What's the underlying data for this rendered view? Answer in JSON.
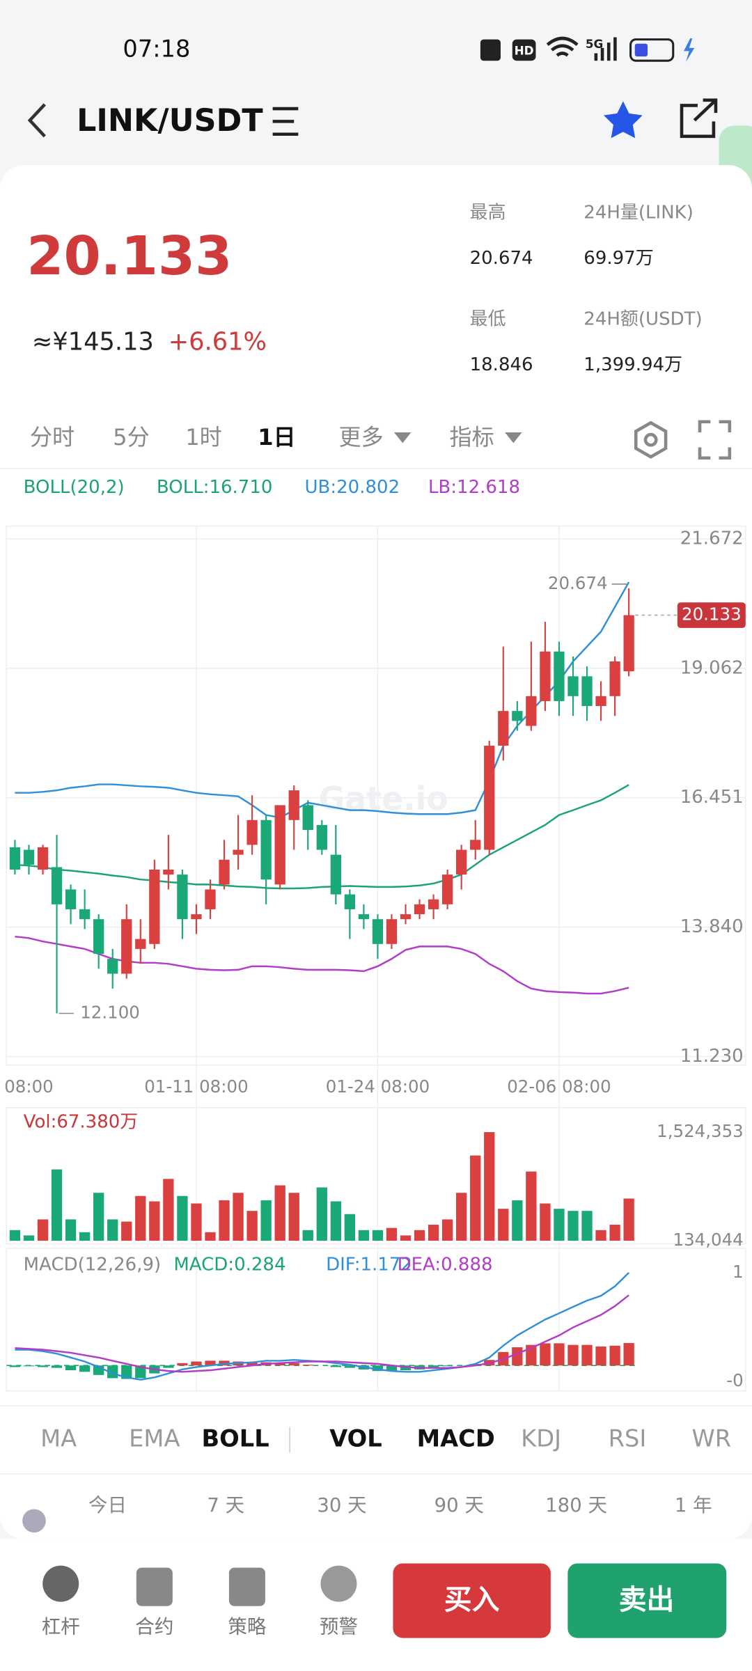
{
  "status": {
    "time": "07:18",
    "hd": "HD",
    "network": "5G"
  },
  "header": {
    "title": "LINK/USDT"
  },
  "ticker": {
    "price": "20.133",
    "cny": "≈¥145.13",
    "change": "+6.61%",
    "stats": [
      {
        "label": "最高",
        "value": "20.674"
      },
      {
        "label": "24H量(LINK)",
        "value": "69.97万"
      },
      {
        "label": "最低",
        "value": "18.846"
      },
      {
        "label": "24H额(USDT)",
        "value": "1,399.94万"
      }
    ]
  },
  "period_tabs": [
    "分时",
    "5分",
    "1时",
    "1日",
    "更多",
    "指标"
  ],
  "chart_data": [
    {
      "type": "candlestick",
      "legend": [
        "BOLL(20,2)",
        "BOLL:16.710",
        "UB:20.802",
        "LB:12.618"
      ],
      "legend_colors": [
        "#1aa373",
        "#1aa373",
        "#2f8fd8",
        "#b23cc8"
      ],
      "watermark": "Gate.io",
      "categories": [
        null,
        "08:00",
        null,
        null,
        null,
        null,
        null,
        null,
        null,
        null,
        null,
        null,
        null,
        "01-11 08:00",
        null,
        null,
        null,
        null,
        null,
        null,
        null,
        null,
        null,
        null,
        null,
        null,
        "01-24 08:00",
        null,
        null,
        null,
        null,
        null,
        null,
        null,
        null,
        null,
        null,
        null,
        null,
        "02-06 08:00",
        null,
        null,
        null,
        null,
        null
      ],
      "open": [
        15.45,
        15.4,
        15.0,
        15.05,
        14.6,
        14.2,
        14.0,
        13.2,
        12.9,
        13.4,
        13.5,
        14.9,
        14.9,
        14.0,
        14.2,
        14.7,
        15.3,
        15.5,
        16.0,
        14.7,
        16.0,
        16.3,
        15.9,
        15.3,
        14.5,
        14.1,
        14.0,
        13.5,
        14.0,
        14.1,
        14.2,
        14.3,
        14.9,
        15.4,
        15.4,
        17.5,
        18.2,
        17.9,
        18.4,
        19.4,
        18.9,
        18.9,
        18.3,
        18.5,
        19.0
      ],
      "high": [
        15.6,
        15.5,
        15.5,
        15.7,
        14.7,
        14.6,
        14.1,
        13.4,
        14.3,
        14.0,
        15.2,
        15.7,
        15.0,
        14.3,
        14.8,
        15.6,
        16.1,
        16.5,
        16.1,
        16.3,
        16.7,
        16.4,
        16.0,
        15.9,
        14.6,
        14.3,
        14.1,
        14.1,
        14.3,
        14.4,
        14.5,
        15.0,
        15.5,
        16.0,
        17.6,
        19.5,
        18.4,
        19.6,
        20.0,
        19.6,
        19.3,
        19.1,
        18.8,
        19.3,
        20.674
      ],
      "low": [
        14.9,
        14.9,
        14.9,
        12.1,
        13.9,
        13.8,
        13.0,
        12.6,
        12.8,
        13.1,
        13.4,
        14.6,
        13.6,
        13.7,
        14.0,
        14.6,
        15.0,
        15.3,
        14.3,
        14.6,
        15.4,
        15.4,
        15.3,
        14.3,
        13.6,
        13.8,
        13.2,
        13.4,
        13.9,
        14.0,
        14.0,
        14.2,
        14.6,
        15.2,
        15.3,
        17.2,
        17.8,
        17.8,
        18.2,
        18.1,
        18.1,
        18.0,
        18.0,
        18.1,
        18.9
      ],
      "close": [
        15.0,
        15.1,
        15.45,
        14.3,
        14.2,
        14.0,
        13.3,
        12.9,
        14.0,
        13.6,
        15.0,
        15.0,
        14.0,
        14.1,
        14.6,
        15.2,
        15.4,
        16.0,
        14.8,
        16.3,
        16.6,
        15.8,
        15.4,
        14.5,
        14.2,
        14.0,
        13.5,
        14.0,
        14.1,
        14.3,
        14.4,
        14.9,
        15.4,
        15.6,
        17.5,
        18.2,
        18.0,
        18.5,
        19.4,
        18.4,
        18.5,
        18.3,
        18.5,
        19.2,
        20.133
      ],
      "up_color": "#d9403f",
      "down_color": "#1aa876",
      "series": [
        {
          "color": "#1aa373",
          "values": [
            15.1,
            15.08,
            15.05,
            15.0,
            14.98,
            14.95,
            14.92,
            14.88,
            14.85,
            14.8,
            14.78,
            14.75,
            14.73,
            14.7,
            14.7,
            14.68,
            14.66,
            14.65,
            14.63,
            14.62,
            14.62,
            14.63,
            14.65,
            14.66,
            14.67,
            14.66,
            14.65,
            14.65,
            14.66,
            14.68,
            14.72,
            14.8,
            14.9,
            15.1,
            15.3,
            15.45,
            15.6,
            15.75,
            15.9,
            16.1,
            16.2,
            16.3,
            16.4,
            16.55,
            16.71
          ]
        },
        {
          "color": "#2f8fd8",
          "values": [
            16.55,
            16.55,
            16.57,
            16.6,
            16.65,
            16.68,
            16.72,
            16.72,
            16.7,
            16.68,
            16.67,
            16.65,
            16.6,
            16.55,
            16.52,
            16.5,
            16.48,
            16.3,
            16.1,
            16.05,
            16.2,
            16.35,
            16.3,
            16.25,
            16.2,
            16.2,
            16.18,
            16.15,
            16.13,
            16.12,
            16.12,
            16.12,
            16.15,
            16.2,
            16.8,
            17.5,
            17.9,
            18.2,
            18.5,
            18.8,
            19.2,
            19.5,
            19.8,
            20.3,
            20.802
          ]
        },
        {
          "color": "#b23cc8",
          "values": [
            13.65,
            13.62,
            13.55,
            13.5,
            13.45,
            13.4,
            13.3,
            13.2,
            13.15,
            13.12,
            13.12,
            13.1,
            13.05,
            13.0,
            12.98,
            12.97,
            12.98,
            13.05,
            13.05,
            13.03,
            13.0,
            12.98,
            12.98,
            12.98,
            12.97,
            12.95,
            13.05,
            13.2,
            13.38,
            13.45,
            13.45,
            13.45,
            13.4,
            13.3,
            13.1,
            12.95,
            12.75,
            12.6,
            12.55,
            12.53,
            12.52,
            12.5,
            12.5,
            12.55,
            12.618
          ]
        }
      ],
      "ylim": [
        11.23,
        21.672
      ],
      "yticks": [
        21.672,
        19.062,
        16.451,
        {
          "value": 13.84,
          "label": "13.840"
        },
        {
          "value": 11.23,
          "label": "11.230"
        }
      ],
      "annotations": [
        "20.674",
        "12.100"
      ],
      "last_price": "20.133",
      "grid": true
    },
    {
      "type": "bar",
      "title": "Vol:67.380万",
      "values": [
        270000,
        202000,
        407000,
        1047000,
        407000,
        243000,
        747000,
        407000,
        379000,
        707000,
        638000,
        925000,
        707000,
        611000,
        243000,
        652000,
        747000,
        516000,
        652000,
        843000,
        747000,
        270000,
        816000,
        638000,
        475000,
        270000,
        270000,
        298000,
        202000,
        270000,
        339000,
        407000,
        747000,
        1225000,
        1524353,
        543000,
        652000,
        1020000,
        611000,
        543000,
        516000,
        516000,
        270000,
        339000,
        673800
      ],
      "ylim": [
        134044,
        1524353
      ],
      "yticks": [
        {
          "value": 1524353,
          "label": "1,524,353"
        },
        {
          "value": 134044,
          "label": "134,044"
        }
      ]
    },
    {
      "type": "macd",
      "legend": [
        "MACD(12,26,9)",
        "MACD:0.284",
        "DIF:1.172",
        "DEA:0.888"
      ],
      "legend_colors": [
        "#888888",
        "#1aa373",
        "#2f8fd8",
        "#b23cc8"
      ],
      "up_color": "#d9403f",
      "down_color": "#1aa876",
      "series": [
        {
          "values": [
            -0.02,
            -0.01,
            -0.02,
            -0.03,
            -0.06,
            -0.08,
            -0.12,
            -0.16,
            -0.17,
            -0.16,
            -0.1,
            -0.03,
            0.03,
            0.05,
            0.06,
            0.06,
            0.05,
            0.04,
            0.04,
            0.03,
            0.03,
            0.01,
            0,
            -0.02,
            -0.03,
            -0.05,
            -0.07,
            -0.07,
            -0.06,
            -0.05,
            -0.03,
            -0.01,
            0,
            0.02,
            0.07,
            0.17,
            0.23,
            0.26,
            0.28,
            0.28,
            0.26,
            0.26,
            0.24,
            0.25,
            0.284
          ]
        },
        {
          "color": "#2f8fd8",
          "values": [
            0.2,
            0.2,
            0.18,
            0.15,
            0.1,
            0.05,
            -0.02,
            -0.1,
            -0.15,
            -0.18,
            -0.15,
            -0.1,
            -0.05,
            -0.02,
            0,
            0.02,
            0.03,
            0.04,
            0.06,
            0.06,
            0.07,
            0.06,
            0.05,
            0.03,
            0.01,
            -0.02,
            -0.05,
            -0.07,
            -0.08,
            -0.08,
            -0.06,
            -0.04,
            -0.02,
            0.02,
            0.1,
            0.25,
            0.38,
            0.48,
            0.58,
            0.66,
            0.74,
            0.82,
            0.88,
            1.0,
            1.172
          ]
        },
        {
          "color": "#b23cc8",
          "values": [
            0.22,
            0.21,
            0.2,
            0.18,
            0.16,
            0.13,
            0.1,
            0.06,
            0.02,
            -0.02,
            -0.05,
            -0.07,
            -0.08,
            -0.07,
            -0.06,
            -0.04,
            -0.02,
            0,
            0.02,
            0.03,
            0.04,
            0.05,
            0.05,
            0.05,
            0.04,
            0.03,
            0.02,
            0,
            -0.02,
            -0.03,
            -0.03,
            -0.03,
            -0.02,
            0,
            0.03,
            0.08,
            0.15,
            0.22,
            0.3,
            0.38,
            0.48,
            0.56,
            0.64,
            0.75,
            0.888
          ]
        }
      ],
      "ylim": [
        -0.2,
        1.172
      ],
      "yticks": [
        {
          "value": 1.172,
          "label": "1"
        },
        {
          "value": -0.2,
          "label": "-0"
        }
      ]
    }
  ],
  "indicator_tabs": [
    "MA",
    "EMA",
    "BOLL",
    "VOL",
    "MACD",
    "KDJ",
    "RSI",
    "WR"
  ],
  "ranges": [
    "今日",
    "7 天",
    "30 天",
    "90 天",
    "180 天",
    "1 年"
  ],
  "nav": [
    "杠杆",
    "合约",
    "策略",
    "预警"
  ],
  "buttons": [
    "买入",
    "卖出"
  ]
}
